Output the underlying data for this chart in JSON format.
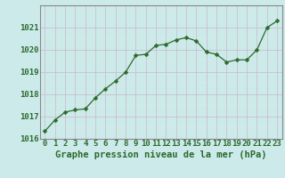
{
  "x": [
    0,
    1,
    2,
    3,
    4,
    5,
    6,
    7,
    8,
    9,
    10,
    11,
    12,
    13,
    14,
    15,
    16,
    17,
    18,
    19,
    20,
    21,
    22,
    23
  ],
  "y": [
    1016.35,
    1016.85,
    1017.2,
    1017.3,
    1017.35,
    1017.85,
    1018.25,
    1018.6,
    1019.0,
    1019.75,
    1019.8,
    1020.2,
    1020.25,
    1020.45,
    1020.55,
    1020.4,
    1019.9,
    1019.8,
    1019.45,
    1019.55,
    1019.55,
    1020.0,
    1021.0,
    1021.3
  ],
  "line_color": "#2d6a2d",
  "marker": "D",
  "marker_size": 2.5,
  "bg_color": "#cceaea",
  "grid_color_major": "#c8b8c8",
  "grid_color_minor": "#ddeedd",
  "xlabel": "Graphe pression niveau de la mer (hPa)",
  "ylim": [
    1016,
    1022
  ],
  "xlim": [
    -0.5,
    23.5
  ],
  "yticks": [
    1016,
    1017,
    1018,
    1019,
    1020,
    1021
  ],
  "xticks": [
    0,
    1,
    2,
    3,
    4,
    5,
    6,
    7,
    8,
    9,
    10,
    11,
    12,
    13,
    14,
    15,
    16,
    17,
    18,
    19,
    20,
    21,
    22,
    23
  ],
  "xlabel_fontsize": 7.5,
  "tick_fontsize": 6.5,
  "xlabel_color": "#2d6a2d",
  "tick_color": "#2d6a2d",
  "spine_color": "#888888",
  "linewidth": 0.9
}
